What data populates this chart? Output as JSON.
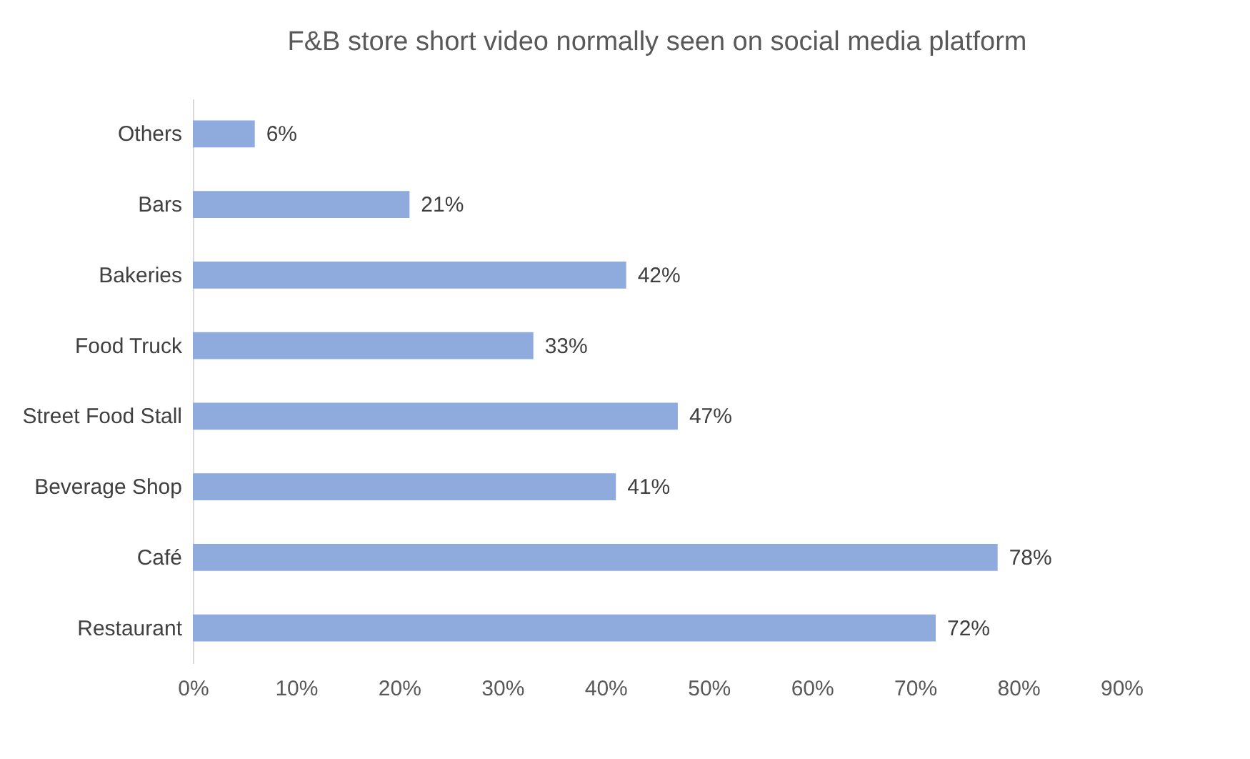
{
  "chart_data": {
    "type": "bar",
    "orientation": "horizontal",
    "title": "F&B store short video normally seen on social media platform",
    "categories": [
      "Others",
      "Bars",
      "Bakeries",
      "Food Truck",
      "Street Food Stall",
      "Beverage Shop",
      "Café",
      "Restaurant"
    ],
    "values": [
      6,
      21,
      42,
      33,
      47,
      41,
      78,
      72
    ],
    "value_labels": [
      "6%",
      "21%",
      "42%",
      "33%",
      "47%",
      "41%",
      "78%",
      "72%"
    ],
    "color": "#8faadc",
    "xlim": [
      0,
      90
    ],
    "xticks": [
      {
        "value": 0,
        "label": "0%"
      },
      {
        "value": 10,
        "label": "10%"
      },
      {
        "value": 20,
        "label": "20%"
      },
      {
        "value": 30,
        "label": "30%"
      },
      {
        "value": 40,
        "label": "40%"
      },
      {
        "value": 50,
        "label": "50%"
      },
      {
        "value": 60,
        "label": "60%"
      },
      {
        "value": 70,
        "label": "70%"
      },
      {
        "value": 80,
        "label": "80%"
      },
      {
        "value": 90,
        "label": "90%"
      }
    ],
    "grid": false
  }
}
